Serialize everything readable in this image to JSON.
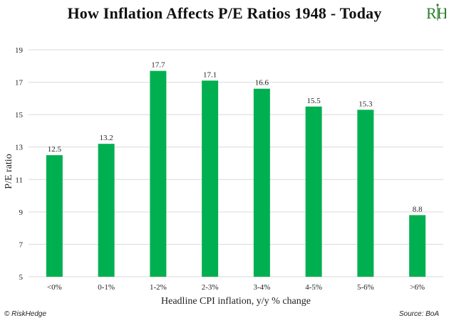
{
  "title": "How Inflation Affects P/E Ratios 1948 - Today",
  "logo": {
    "text": "RH",
    "icon": "riskhedge-logo-icon",
    "color": "#2e7d32"
  },
  "footer": {
    "left": "© RiskHedge",
    "right": "Source: BoA"
  },
  "colors": {
    "bar": "#00b050",
    "grid": "#d9d9d9",
    "text": "#222222"
  },
  "chart_data": {
    "type": "bar",
    "title": "How Inflation Affects P/E Ratios 1948 - Today",
    "xlabel": "Headline CPI inflation, y/y % change",
    "ylabel": "P/E ratio",
    "categories": [
      "<0%",
      "0-1%",
      "1-2%",
      "2-3%",
      "3-4%",
      "4-5%",
      "5-6%",
      ">6%"
    ],
    "values": [
      12.5,
      13.2,
      17.7,
      17.1,
      16.6,
      15.5,
      15.3,
      8.8
    ],
    "data_labels": [
      "12.5",
      "13.2",
      "17.7",
      "17.1",
      "16.6",
      "15.5",
      "15.3",
      "8.8"
    ],
    "ylim": [
      5,
      19
    ],
    "yticks": [
      5,
      7,
      9,
      11,
      13,
      15,
      17,
      19
    ],
    "ytick_labels": [
      "5",
      "7",
      "9",
      "11",
      "13",
      "15",
      "17",
      "19"
    ],
    "grid": "horizontal",
    "legend": "none"
  }
}
